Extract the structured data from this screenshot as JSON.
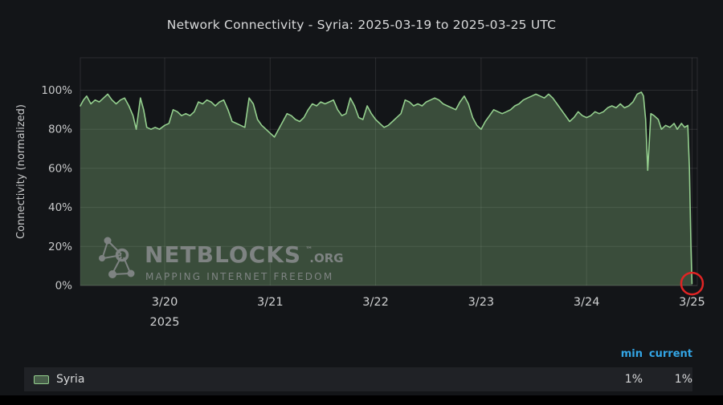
{
  "title": "Network Connectivity - Syria: 2025-03-19 to 2025-03-25 UTC",
  "watermark": {
    "brand": "NETBLOCKS",
    "tm": "™",
    "tld": ".ORG",
    "tagline": "MAPPING INTERNET FREEDOM"
  },
  "legend": {
    "headers": [
      "min",
      "current"
    ],
    "series_label": "Syria",
    "min": "1%",
    "current": "1%"
  },
  "colors": {
    "background": "#131518",
    "grid": "rgba(255,255,255,0.10)",
    "line": "#94cf8e",
    "fill": "rgba(148,207,142,0.30)",
    "annotation": "#e02424",
    "legend_accent": "#33a5e5",
    "legend_bg": "#202226"
  },
  "chart_data": {
    "type": "area",
    "title": "Network Connectivity - Syria: 2025-03-19 to 2025-03-25 UTC",
    "ylabel": "Connectivity (normalized)",
    "xlabel": "",
    "year_label": "2025",
    "ylim": [
      0,
      100
    ],
    "grid": true,
    "legend_position": "bottom",
    "x_unit": "days since 2025-03-19 00:00 UTC",
    "x_domain": [
      0.2,
      6.05
    ],
    "y_ticks": [
      {
        "v": 0,
        "label": "0%"
      },
      {
        "v": 20,
        "label": "20%"
      },
      {
        "v": 40,
        "label": "40%"
      },
      {
        "v": 60,
        "label": "60%"
      },
      {
        "v": 80,
        "label": "80%"
      },
      {
        "v": 100,
        "label": "100%"
      }
    ],
    "x_ticks": [
      {
        "t": 1,
        "label": "3/20"
      },
      {
        "t": 2,
        "label": "3/21"
      },
      {
        "t": 3,
        "label": "3/22"
      },
      {
        "t": 4,
        "label": "3/23"
      },
      {
        "t": 5,
        "label": "3/24"
      },
      {
        "t": 6,
        "label": "3/25"
      }
    ],
    "series": [
      {
        "name": "Syria",
        "stats": {
          "min": 1,
          "current": 1
        },
        "points": [
          [
            0.2,
            92
          ],
          [
            0.23,
            95
          ],
          [
            0.26,
            97
          ],
          [
            0.3,
            93
          ],
          [
            0.34,
            95
          ],
          [
            0.38,
            94
          ],
          [
            0.42,
            96
          ],
          [
            0.46,
            98
          ],
          [
            0.5,
            95
          ],
          [
            0.54,
            93
          ],
          [
            0.58,
            95
          ],
          [
            0.62,
            96
          ],
          [
            0.66,
            92
          ],
          [
            0.7,
            87
          ],
          [
            0.73,
            80
          ],
          [
            0.77,
            96
          ],
          [
            0.8,
            90
          ],
          [
            0.83,
            81
          ],
          [
            0.87,
            80
          ],
          [
            0.91,
            81
          ],
          [
            0.95,
            80
          ],
          [
            1.0,
            82
          ],
          [
            1.04,
            83
          ],
          [
            1.08,
            90
          ],
          [
            1.12,
            89
          ],
          [
            1.16,
            87
          ],
          [
            1.2,
            88
          ],
          [
            1.24,
            87
          ],
          [
            1.28,
            89
          ],
          [
            1.32,
            94
          ],
          [
            1.36,
            93
          ],
          [
            1.4,
            95
          ],
          [
            1.44,
            94
          ],
          [
            1.48,
            92
          ],
          [
            1.52,
            94
          ],
          [
            1.56,
            95
          ],
          [
            1.6,
            90
          ],
          [
            1.64,
            84
          ],
          [
            1.68,
            83
          ],
          [
            1.72,
            82
          ],
          [
            1.76,
            81
          ],
          [
            1.8,
            96
          ],
          [
            1.84,
            93
          ],
          [
            1.88,
            85
          ],
          [
            1.92,
            82
          ],
          [
            1.96,
            80
          ],
          [
            2.0,
            78
          ],
          [
            2.04,
            76
          ],
          [
            2.08,
            80
          ],
          [
            2.12,
            84
          ],
          [
            2.16,
            88
          ],
          [
            2.2,
            87
          ],
          [
            2.24,
            85
          ],
          [
            2.28,
            84
          ],
          [
            2.32,
            86
          ],
          [
            2.36,
            90
          ],
          [
            2.4,
            93
          ],
          [
            2.44,
            92
          ],
          [
            2.48,
            94
          ],
          [
            2.52,
            93
          ],
          [
            2.56,
            94
          ],
          [
            2.6,
            95
          ],
          [
            2.64,
            90
          ],
          [
            2.68,
            87
          ],
          [
            2.72,
            88
          ],
          [
            2.76,
            96
          ],
          [
            2.8,
            92
          ],
          [
            2.84,
            86
          ],
          [
            2.88,
            85
          ],
          [
            2.92,
            92
          ],
          [
            2.96,
            88
          ],
          [
            3.0,
            85
          ],
          [
            3.04,
            83
          ],
          [
            3.08,
            81
          ],
          [
            3.12,
            82
          ],
          [
            3.16,
            84
          ],
          [
            3.2,
            86
          ],
          [
            3.24,
            88
          ],
          [
            3.28,
            95
          ],
          [
            3.32,
            94
          ],
          [
            3.36,
            92
          ],
          [
            3.4,
            93
          ],
          [
            3.44,
            92
          ],
          [
            3.48,
            94
          ],
          [
            3.52,
            95
          ],
          [
            3.56,
            96
          ],
          [
            3.6,
            95
          ],
          [
            3.64,
            93
          ],
          [
            3.68,
            92
          ],
          [
            3.72,
            91
          ],
          [
            3.76,
            90
          ],
          [
            3.8,
            94
          ],
          [
            3.84,
            97
          ],
          [
            3.88,
            93
          ],
          [
            3.92,
            86
          ],
          [
            3.96,
            82
          ],
          [
            4.0,
            80
          ],
          [
            4.04,
            84
          ],
          [
            4.08,
            87
          ],
          [
            4.12,
            90
          ],
          [
            4.16,
            89
          ],
          [
            4.2,
            88
          ],
          [
            4.24,
            89
          ],
          [
            4.28,
            90
          ],
          [
            4.32,
            92
          ],
          [
            4.36,
            93
          ],
          [
            4.4,
            95
          ],
          [
            4.44,
            96
          ],
          [
            4.48,
            97
          ],
          [
            4.52,
            98
          ],
          [
            4.56,
            97
          ],
          [
            4.6,
            96
          ],
          [
            4.64,
            98
          ],
          [
            4.68,
            96
          ],
          [
            4.72,
            93
          ],
          [
            4.76,
            90
          ],
          [
            4.8,
            87
          ],
          [
            4.84,
            84
          ],
          [
            4.88,
            86
          ],
          [
            4.92,
            89
          ],
          [
            4.96,
            87
          ],
          [
            5.0,
            86
          ],
          [
            5.04,
            87
          ],
          [
            5.08,
            89
          ],
          [
            5.12,
            88
          ],
          [
            5.16,
            89
          ],
          [
            5.2,
            91
          ],
          [
            5.24,
            92
          ],
          [
            5.28,
            91
          ],
          [
            5.32,
            93
          ],
          [
            5.36,
            91
          ],
          [
            5.4,
            92
          ],
          [
            5.44,
            94
          ],
          [
            5.48,
            98
          ],
          [
            5.52,
            99
          ],
          [
            5.54,
            97
          ],
          [
            5.56,
            85
          ],
          [
            5.58,
            59
          ],
          [
            5.61,
            88
          ],
          [
            5.64,
            87
          ],
          [
            5.68,
            85
          ],
          [
            5.71,
            80
          ],
          [
            5.75,
            82
          ],
          [
            5.79,
            81
          ],
          [
            5.83,
            83
          ],
          [
            5.86,
            80
          ],
          [
            5.9,
            83
          ],
          [
            5.93,
            81
          ],
          [
            5.96,
            82
          ],
          [
            5.975,
            60
          ],
          [
            5.99,
            20
          ],
          [
            6.0,
            1
          ]
        ]
      }
    ],
    "annotation": {
      "type": "circle",
      "t": 6.0,
      "v": 1,
      "note": "outage endpoint circled"
    }
  }
}
